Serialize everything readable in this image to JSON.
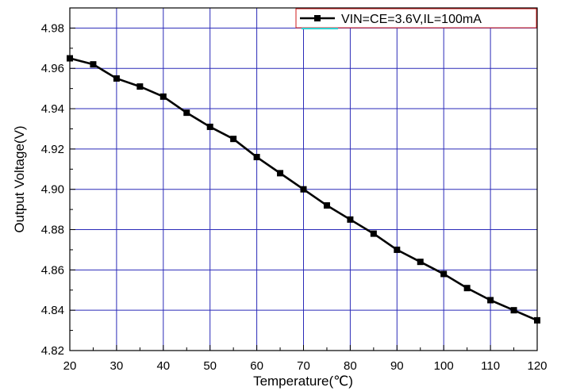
{
  "chart_data": {
    "type": "line",
    "xlabel": "Temperature(℃)",
    "ylabel": "Output Voltage(V)",
    "xlim": [
      20,
      120
    ],
    "ylim": [
      4.82,
      4.99
    ],
    "xticks": [
      "20",
      "30",
      "40",
      "50",
      "60",
      "70",
      "80",
      "90",
      "100",
      "110",
      "120"
    ],
    "yticks": [
      "4.82",
      "4.84",
      "4.86",
      "4.88",
      "4.90",
      "4.92",
      "4.94",
      "4.96",
      "4.98"
    ],
    "grid": true,
    "legend_position": "top-right",
    "series": [
      {
        "name": "VIN=CE=3.6V,IL=100mA",
        "color": "#000000",
        "marker": "square",
        "x": [
          20,
          25,
          30,
          35,
          40,
          45,
          50,
          55,
          60,
          65,
          70,
          75,
          80,
          85,
          90,
          95,
          100,
          105,
          110,
          115,
          120
        ],
        "y": [
          4.965,
          4.962,
          4.955,
          4.951,
          4.946,
          4.938,
          4.931,
          4.925,
          4.916,
          4.908,
          4.9,
          4.892,
          4.885,
          4.878,
          4.87,
          4.864,
          4.858,
          4.851,
          4.845,
          4.84,
          4.835
        ]
      }
    ]
  },
  "colors": {
    "grid": "#2a2ab8",
    "axis": "#000000",
    "legend_border": "#d01818",
    "legend_underline": "#2fd0d0"
  }
}
